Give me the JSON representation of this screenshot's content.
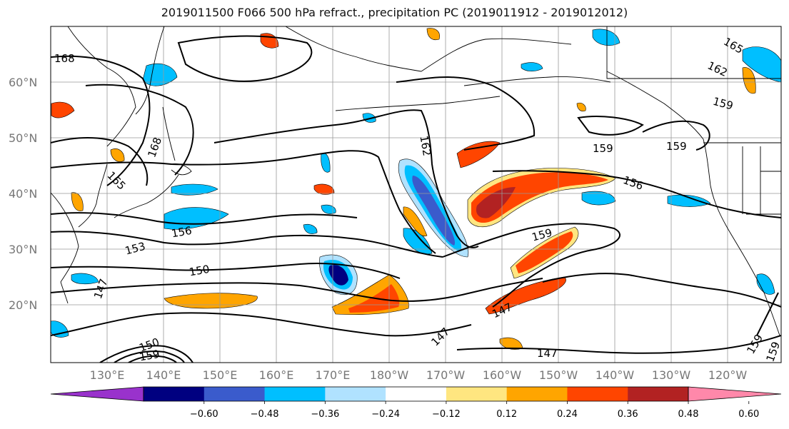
{
  "title": "2019011500 F066 500 hPa refract., precipitation PC (2019011912 - 2019012012)",
  "lat_labels": [
    "60°N",
    "50°N",
    "40°N",
    "30°N",
    "20°N"
  ],
  "lon_labels": [
    "130°E",
    "140°E",
    "150°E",
    "160°E",
    "170°E",
    "180°W",
    "170°W",
    "160°W",
    "150°W",
    "140°W",
    "130°W",
    "120°W"
  ],
  "contour_labels": [
    "168",
    "168",
    "165",
    "162",
    "165",
    "162",
    "159",
    "159",
    "159",
    "156",
    "156",
    "153",
    "150",
    "159",
    "147",
    "147",
    "147",
    "147",
    "150",
    "159",
    "159",
    "159"
  ],
  "colorbar": {
    "colors": [
      "#9932cc",
      "#000080",
      "#3a5bcc",
      "#00bfff",
      "#b0e2ff",
      "#ffffff",
      "#ffe680",
      "#ffa500",
      "#ff4500",
      "#b22222",
      "#ff88aa"
    ],
    "tick_labels": [
      "−0.60",
      "−0.48",
      "−0.36",
      "−0.24",
      "−0.12",
      "0.12",
      "0.24",
      "0.36",
      "0.48",
      "0.60"
    ]
  }
}
